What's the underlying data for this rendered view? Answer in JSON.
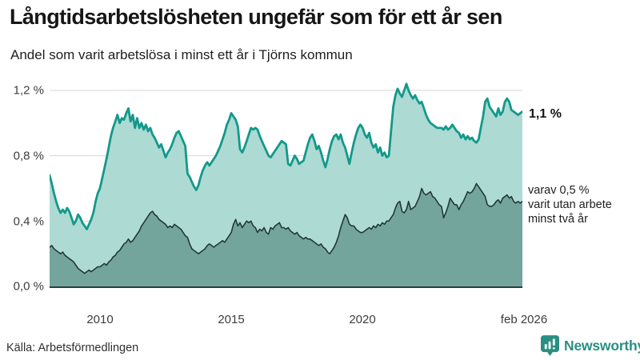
{
  "title": "Långtidsarbetslösheten ungefär som för ett år sen",
  "subtitle": "Andel som varit arbetslösa i minst ett år i Tjörns kommun",
  "source": "Källa: Arbetsförmedlingen",
  "logo": {
    "text": "Newsworthy",
    "color": "#2a8f82"
  },
  "annotations": {
    "total_end_label": "1,1 %",
    "subset_label_lines": [
      "varav 0,5 %",
      "varit utan arbete",
      "minst två år"
    ]
  },
  "chart_data": {
    "type": "area",
    "title": "Långtidsarbetslösheten ungefär som för ett år sen",
    "subtitle": "Andel som varit arbetslösa i minst ett år i Tjörns kommun",
    "unit": "%",
    "grid": true,
    "ylim": [
      0,
      1.25
    ],
    "yticks": [
      {
        "label": "1,2 %",
        "value": 1.2
      },
      {
        "label": "0,8 %",
        "value": 0.8
      },
      {
        "label": "0,4 %",
        "value": 0.4
      },
      {
        "label": "0,0 %",
        "value": 0.0
      }
    ],
    "xticks": [
      {
        "label": "2010",
        "month_index": 23
      },
      {
        "label": "2015",
        "month_index": 83
      },
      {
        "label": "2020",
        "month_index": 143
      },
      {
        "label": "feb 2026",
        "month_index": 216
      }
    ],
    "colors": {
      "total_line": "#12998a",
      "total_fill": "#aedad4",
      "subset_line": "#223937",
      "subset_fill": "#73a59d",
      "gridline": "#d7d7d7",
      "baseline": "#2c3e3b"
    },
    "series": [
      {
        "name": "Andel arbetslösa minst ett år",
        "end_value_label": "1,1 %",
        "values": [
          0.68,
          0.63,
          0.57,
          0.52,
          0.48,
          0.45,
          0.47,
          0.45,
          0.48,
          0.46,
          0.42,
          0.38,
          0.4,
          0.44,
          0.42,
          0.39,
          0.37,
          0.35,
          0.38,
          0.41,
          0.45,
          0.52,
          0.57,
          0.6,
          0.66,
          0.72,
          0.78,
          0.85,
          0.92,
          0.97,
          1.01,
          1.05,
          1.0,
          1.03,
          1.02,
          1.06,
          1.09,
          1.01,
          1.05,
          0.97,
          1.03,
          0.97,
          1.0,
          0.96,
          0.99,
          0.95,
          0.97,
          0.93,
          0.91,
          0.88,
          0.85,
          0.87,
          0.83,
          0.79,
          0.82,
          0.84,
          0.87,
          0.91,
          0.94,
          0.95,
          0.92,
          0.89,
          0.86,
          0.69,
          0.67,
          0.64,
          0.61,
          0.59,
          0.62,
          0.67,
          0.71,
          0.74,
          0.76,
          0.74,
          0.76,
          0.78,
          0.8,
          0.83,
          0.86,
          0.9,
          0.94,
          0.99,
          1.02,
          1.06,
          1.04,
          1.02,
          0.98,
          0.84,
          0.82,
          0.85,
          0.89,
          0.93,
          0.97,
          0.96,
          0.97,
          0.96,
          0.92,
          0.89,
          0.86,
          0.83,
          0.8,
          0.79,
          0.81,
          0.83,
          0.85,
          0.87,
          0.89,
          0.88,
          0.87,
          0.75,
          0.74,
          0.77,
          0.8,
          0.78,
          0.75,
          0.76,
          0.77,
          0.82,
          0.87,
          0.91,
          0.93,
          0.89,
          0.84,
          0.86,
          0.82,
          0.77,
          0.73,
          0.78,
          0.84,
          0.89,
          0.92,
          0.93,
          0.9,
          0.93,
          0.88,
          0.85,
          0.8,
          0.75,
          0.82,
          0.88,
          0.93,
          0.97,
          0.99,
          0.97,
          0.93,
          0.91,
          0.94,
          0.88,
          0.85,
          0.87,
          0.82,
          0.85,
          0.8,
          0.82,
          0.79,
          0.8,
          0.95,
          1.1,
          1.17,
          1.21,
          1.18,
          1.16,
          1.2,
          1.24,
          1.2,
          1.17,
          1.15,
          1.17,
          1.14,
          1.12,
          1.13,
          1.09,
          1.05,
          1.02,
          1.0,
          0.99,
          0.98,
          0.97,
          0.97,
          0.97,
          0.96,
          0.98,
          0.96,
          0.97,
          0.99,
          0.97,
          0.95,
          0.94,
          0.91,
          0.93,
          0.9,
          0.92,
          0.9,
          0.91,
          0.89,
          0.88,
          0.9,
          0.97,
          1.04,
          1.13,
          1.15,
          1.1,
          1.08,
          1.06,
          1.04,
          1.09,
          1.05,
          1.07,
          1.13,
          1.15,
          1.13,
          1.08,
          1.07,
          1.06,
          1.05,
          1.06,
          1.07
        ]
      },
      {
        "name": "varav arbetslösa minst två år",
        "end_value_label": "varav 0,5 %",
        "values": [
          0.24,
          0.25,
          0.23,
          0.22,
          0.21,
          0.2,
          0.21,
          0.19,
          0.18,
          0.17,
          0.16,
          0.15,
          0.13,
          0.11,
          0.1,
          0.09,
          0.08,
          0.09,
          0.1,
          0.09,
          0.1,
          0.11,
          0.12,
          0.12,
          0.13,
          0.14,
          0.13,
          0.15,
          0.16,
          0.18,
          0.19,
          0.21,
          0.22,
          0.24,
          0.26,
          0.27,
          0.29,
          0.27,
          0.28,
          0.3,
          0.32,
          0.34,
          0.37,
          0.39,
          0.41,
          0.43,
          0.45,
          0.46,
          0.44,
          0.43,
          0.41,
          0.4,
          0.39,
          0.38,
          0.36,
          0.37,
          0.36,
          0.38,
          0.37,
          0.36,
          0.35,
          0.33,
          0.31,
          0.3,
          0.26,
          0.23,
          0.22,
          0.21,
          0.2,
          0.21,
          0.22,
          0.23,
          0.25,
          0.26,
          0.25,
          0.24,
          0.25,
          0.26,
          0.27,
          0.28,
          0.27,
          0.29,
          0.31,
          0.33,
          0.38,
          0.41,
          0.37,
          0.39,
          0.36,
          0.38,
          0.4,
          0.39,
          0.4,
          0.37,
          0.36,
          0.33,
          0.35,
          0.34,
          0.36,
          0.33,
          0.32,
          0.36,
          0.35,
          0.37,
          0.38,
          0.39,
          0.36,
          0.36,
          0.35,
          0.36,
          0.34,
          0.33,
          0.32,
          0.33,
          0.31,
          0.3,
          0.29,
          0.3,
          0.29,
          0.29,
          0.28,
          0.27,
          0.26,
          0.25,
          0.26,
          0.24,
          0.23,
          0.21,
          0.2,
          0.22,
          0.24,
          0.27,
          0.31,
          0.36,
          0.4,
          0.44,
          0.42,
          0.38,
          0.37,
          0.37,
          0.35,
          0.34,
          0.33,
          0.33,
          0.34,
          0.35,
          0.36,
          0.35,
          0.37,
          0.36,
          0.38,
          0.37,
          0.39,
          0.38,
          0.4,
          0.4,
          0.42,
          0.44,
          0.48,
          0.51,
          0.52,
          0.46,
          0.45,
          0.47,
          0.52,
          0.47,
          0.48,
          0.49,
          0.52,
          0.55,
          0.6,
          0.57,
          0.56,
          0.57,
          0.58,
          0.55,
          0.54,
          0.52,
          0.5,
          0.49,
          0.42,
          0.45,
          0.49,
          0.54,
          0.52,
          0.5,
          0.5,
          0.47,
          0.5,
          0.52,
          0.55,
          0.58,
          0.57,
          0.58,
          0.6,
          0.63,
          0.61,
          0.59,
          0.57,
          0.55,
          0.5,
          0.49,
          0.49,
          0.5,
          0.52,
          0.53,
          0.51,
          0.54,
          0.55,
          0.56,
          0.54,
          0.55,
          0.52,
          0.51,
          0.52,
          0.51,
          0.52
        ]
      }
    ]
  }
}
